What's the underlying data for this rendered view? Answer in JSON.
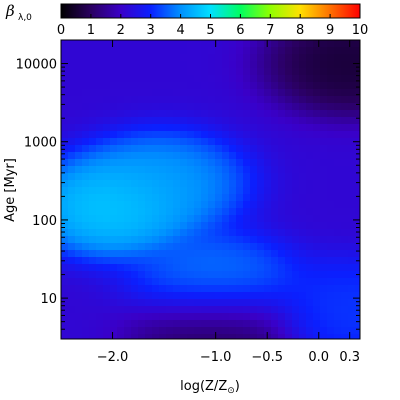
{
  "chart_data": {
    "type": "heatmap",
    "colorbar": {
      "label_symbol": "β",
      "label_subscript": "λ,0",
      "min": 0,
      "max": 10,
      "ticks": [
        "0",
        "1",
        "2",
        "3",
        "4",
        "5",
        "6",
        "7",
        "8",
        "9",
        "10"
      ],
      "colormap": [
        "#000000",
        "#2a0060",
        "#3a00c8",
        "#0a20ff",
        "#0090ff",
        "#00e0ff",
        "#00ff60",
        "#90ff00",
        "#ffe000",
        "#ff7000",
        "#ff0000"
      ],
      "position": "top"
    },
    "x_axis": {
      "label": "log(Z/Z",
      "label_sub": "⊙",
      "label_close": ")",
      "range": [
        -2.5,
        0.4
      ],
      "ticks": [
        {
          "value": -2.0,
          "label": "−2.0"
        },
        {
          "value": -1.0,
          "label": "−1.0"
        },
        {
          "value": -0.5,
          "label": "−0.5"
        },
        {
          "value": 0.0,
          "label": "0.0"
        },
        {
          "value": 0.3,
          "label": "0.3"
        }
      ]
    },
    "y_axis": {
      "label": "Age [Myr]",
      "scale": "log",
      "range": [
        3,
        20000
      ],
      "ticks": [
        {
          "value": 10,
          "label": "10"
        },
        {
          "value": 100,
          "label": "100"
        },
        {
          "value": 1000,
          "label": "1000"
        },
        {
          "value": 10000,
          "label": "10000"
        }
      ]
    },
    "approx_regions": [
      {
        "description": "peak",
        "logZ": -2.0,
        "age": 150,
        "value": 5.0
      },
      {
        "description": "broad",
        "logZ": -1.5,
        "age": 300,
        "value": 4.3
      },
      {
        "description": "low-age band",
        "logZ": -1.0,
        "age": 15,
        "value": 4.0
      },
      {
        "description": "old metal-rich",
        "logZ": 0.3,
        "age": 10000,
        "value": 0.4
      },
      {
        "description": "youngest",
        "logZ": -1.0,
        "age": 4,
        "value": 0.8
      },
      {
        "description": "metal-rich young",
        "logZ": 0.3,
        "age": 7,
        "value": 3.3
      }
    ]
  }
}
